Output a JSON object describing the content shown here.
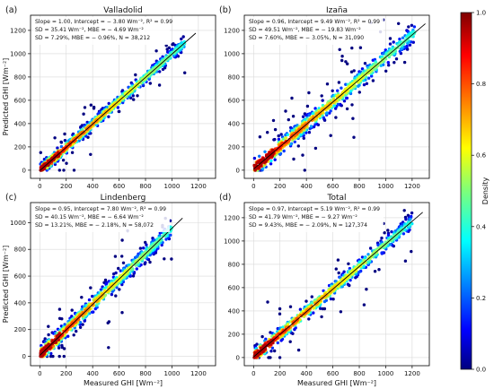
{
  "colorbar": {
    "label": "Density",
    "ticks": [
      "0.0",
      "0.2",
      "0.4",
      "0.6",
      "0.8",
      "1.0"
    ],
    "colormap": "jet",
    "range": [
      0,
      1
    ]
  },
  "axis_labels": {
    "ylabel": "Predicted GHI [Wm⁻²]",
    "xlabel": "Measured GHI [Wm⁻²]"
  },
  "chart_data": [
    {
      "type": "scatter",
      "panel_label": "(a)",
      "title": "Valladolid",
      "stats": [
        "Slope = 1.00, Intercept = − 3.80 Wm⁻², R² = 0.99",
        "SD = 35.41 Wm⁻², MBE = − 4.69 Wm⁻²",
        "SD = 7.29%, MBE = − 0.96%, N = 38,212"
      ],
      "xlabel": "",
      "ylabel": "Predicted GHI [Wm⁻²]",
      "xticks": [
        0,
        200,
        400,
        600,
        800,
        1000,
        1200
      ],
      "yticks": [
        0,
        200,
        400,
        600,
        800,
        1000,
        1200
      ],
      "xlim": [
        -70,
        1330
      ],
      "ylim": [
        -70,
        1330
      ],
      "slope": 1.0,
      "intercept": -3.8,
      "data_xmax": 1100,
      "spread": 35,
      "grid": true,
      "colorscale": "density"
    },
    {
      "type": "scatter",
      "panel_label": "(b)",
      "title": "Izaña",
      "stats": [
        "Slope = 0.96, Intercept = 9.49 Wm⁻², R² = 0.99",
        "SD = 49.51 Wm⁻², MBE = − 19.83 Wm⁻²",
        "SD = 7.60%, MBE = − 3.05%, N = 31,090"
      ],
      "xlabel": "",
      "ylabel": "",
      "xticks": [
        0,
        200,
        400,
        600,
        800,
        1000,
        1200
      ],
      "yticks": [
        0,
        200,
        400,
        600,
        800,
        1000,
        1200
      ],
      "xlim": [
        -70,
        1330
      ],
      "ylim": [
        -70,
        1330
      ],
      "slope": 0.96,
      "intercept": 9.49,
      "data_xmax": 1220,
      "spread": 50,
      "grid": true,
      "colorscale": "density"
    },
    {
      "type": "scatter",
      "panel_label": "(c)",
      "title": "Lindenberg",
      "stats": [
        "Slope = 0.95, Intercept = 7.80 Wm⁻², R² = 0.99",
        "SD = 40.15 Wm⁻², MBE = − 6.64 Wm⁻²",
        "SD = 13.21%, MBE = − 2.18%, N = 58,072"
      ],
      "xlabel": "Measured GHI [Wm⁻²]",
      "ylabel": "Predicted GHI [Wm⁻²]",
      "xticks": [
        0,
        200,
        400,
        600,
        800,
        1000,
        1200
      ],
      "yticks": [
        0,
        200,
        400,
        600,
        800,
        1000
      ],
      "xlim": [
        -70,
        1330
      ],
      "ylim": [
        -70,
        1150
      ],
      "slope": 0.95,
      "intercept": 7.8,
      "data_xmax": 1000,
      "spread": 40,
      "grid": true,
      "colorscale": "density"
    },
    {
      "type": "scatter",
      "panel_label": "(d)",
      "title": "Total",
      "stats": [
        "Slope = 0.97, Intercept = 5.19 Wm⁻², R² = 0.99",
        "SD = 41.79 Wm⁻², MBE = − 9.27 Wm⁻²",
        "SD = 9.43%, MBE = − 2.09%, N = 127,374"
      ],
      "xlabel": "Measured GHI [Wm⁻²]",
      "ylabel": "",
      "xticks": [
        0,
        200,
        400,
        600,
        800,
        1000,
        1200
      ],
      "yticks": [
        0,
        200,
        400,
        600,
        800,
        1000,
        1200
      ],
      "xlim": [
        -70,
        1330
      ],
      "ylim": [
        -70,
        1330
      ],
      "slope": 0.97,
      "intercept": 5.19,
      "data_xmax": 1200,
      "spread": 42,
      "grid": true,
      "colorscale": "density"
    }
  ]
}
